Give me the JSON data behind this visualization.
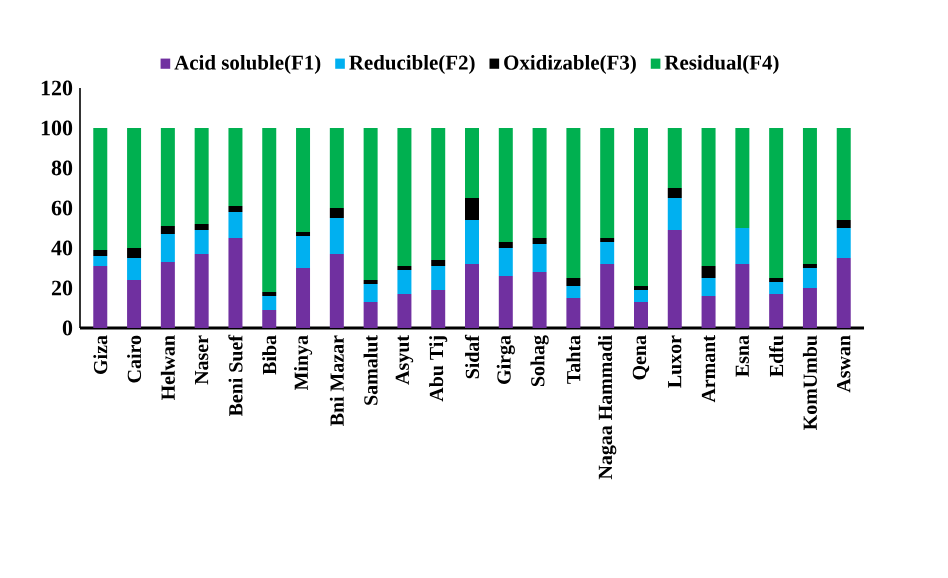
{
  "chart_data": {
    "type": "bar",
    "stacked": true,
    "legend": "top",
    "ylim": [
      0,
      120
    ],
    "yticks": [
      0,
      20,
      40,
      60,
      80,
      100,
      120
    ],
    "categories": [
      "Giza",
      "Cairo",
      "Helwan",
      "Naser",
      "Beni Suef",
      "Biba",
      "Minya",
      "Bni Mazar",
      "Samalut",
      "Asyut",
      "Abu Tij",
      "Sidaf",
      "Girga",
      "Sohag",
      "Tahta",
      "Nagaa Hammadi",
      "Qena",
      "Luxor",
      "Armant",
      "Esna",
      "Edfu",
      "KomUmbu",
      "Aswan"
    ],
    "series": [
      {
        "name": "Acid soluble(F1)",
        "color": "#7030a0",
        "values": [
          31,
          24,
          33,
          37,
          45,
          9,
          30,
          37,
          13,
          17,
          19,
          32,
          26,
          28,
          15,
          32,
          13,
          49,
          16,
          32,
          17,
          20,
          35
        ]
      },
      {
        "name": "Reducible(F2)",
        "color": "#00b0f0",
        "values": [
          5,
          11,
          14,
          12,
          13,
          7,
          16,
          18,
          9,
          12,
          12,
          22,
          14,
          14,
          6,
          11,
          6,
          16,
          9,
          18,
          6,
          10,
          15
        ]
      },
      {
        "name": "Oxidizable(F3)",
        "color": "#000000",
        "values": [
          3,
          5,
          4,
          3,
          3,
          2,
          2,
          5,
          2,
          2,
          3,
          11,
          3,
          3,
          4,
          2,
          2,
          5,
          6,
          0,
          2,
          2,
          4
        ]
      },
      {
        "name": "Residual(F4)",
        "color": "#00b050",
        "values": [
          61,
          60,
          49,
          48,
          39,
          82,
          52,
          40,
          76,
          69,
          66,
          35,
          57,
          55,
          75,
          55,
          79,
          30,
          69,
          50,
          75,
          68,
          46
        ]
      }
    ]
  }
}
